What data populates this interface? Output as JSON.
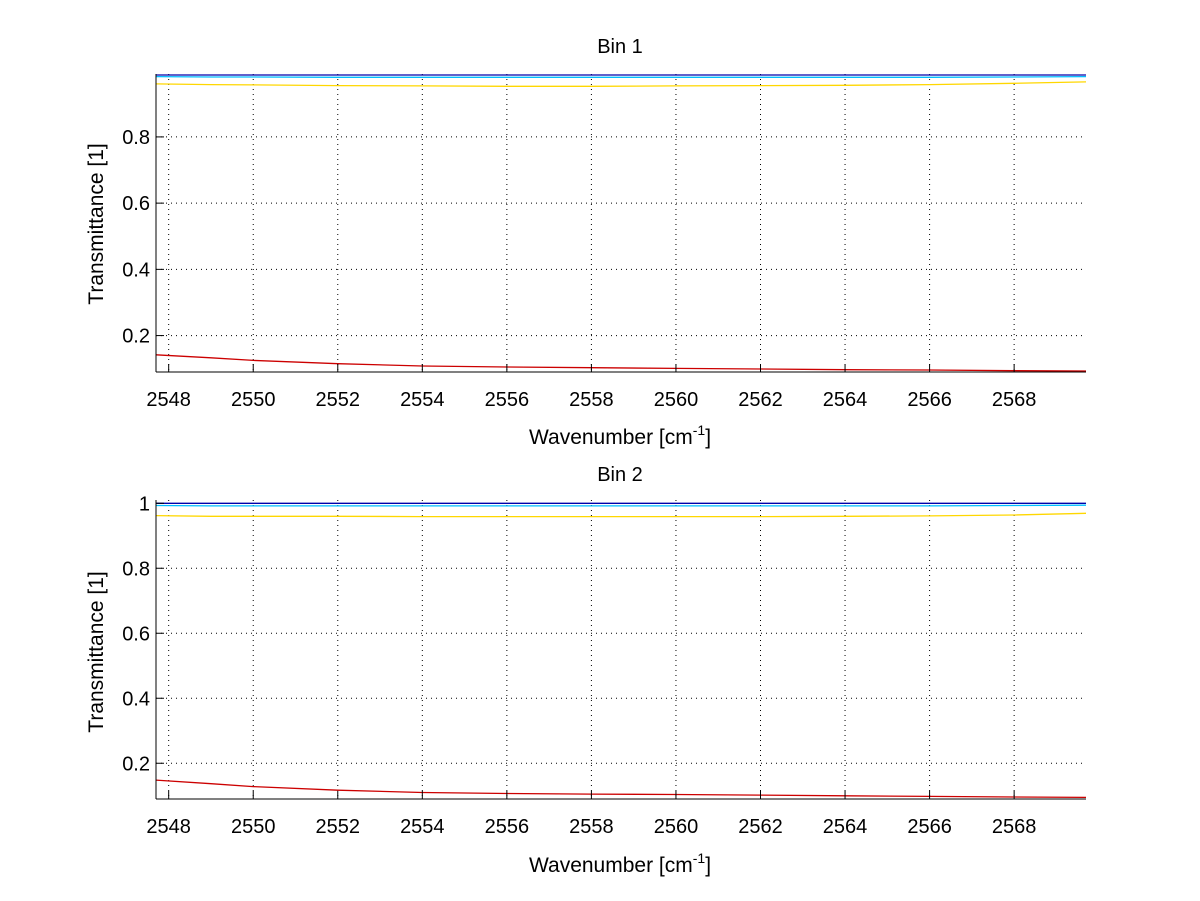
{
  "chart_data": [
    {
      "type": "line",
      "title": "Bin 1",
      "xlabel_text": "Wavenumber [cm",
      "xlabel_sup": "-1",
      "xlabel_close": "]",
      "ylabel": "Transmittance [1]",
      "xlim": [
        2547.7,
        2569.7
      ],
      "ylim": [
        0.09,
        0.99
      ],
      "x_ticks": [
        2548,
        2550,
        2552,
        2554,
        2556,
        2558,
        2560,
        2562,
        2564,
        2566,
        2568
      ],
      "y_ticks": [
        0.2,
        0.4,
        0.6,
        0.8
      ],
      "grid": true,
      "x": [
        2547.7,
        2549,
        2550,
        2552,
        2554,
        2556,
        2558,
        2560,
        2562,
        2564,
        2566,
        2568,
        2569.7
      ],
      "series": [
        {
          "color": "#0000aa",
          "values": [
            0.987,
            0.987,
            0.987,
            0.987,
            0.987,
            0.987,
            0.987,
            0.987,
            0.987,
            0.987,
            0.987,
            0.987,
            0.987
          ]
        },
        {
          "color": "#00bfff",
          "values": [
            0.982,
            0.981,
            0.981,
            0.98,
            0.98,
            0.98,
            0.98,
            0.98,
            0.98,
            0.98,
            0.98,
            0.981,
            0.982
          ]
        },
        {
          "color": "#ffd700",
          "values": [
            0.96,
            0.958,
            0.957,
            0.955,
            0.954,
            0.953,
            0.953,
            0.954,
            0.955,
            0.956,
            0.958,
            0.962,
            0.966
          ]
        },
        {
          "color": "#cc0000",
          "values": [
            0.142,
            0.133,
            0.125,
            0.115,
            0.108,
            0.105,
            0.103,
            0.101,
            0.099,
            0.097,
            0.096,
            0.094,
            0.093
          ]
        }
      ]
    },
    {
      "type": "line",
      "title": "Bin 2",
      "xlabel_text": "Wavenumber [cm",
      "xlabel_sup": "-1",
      "xlabel_close": "]",
      "ylabel": "Transmittance [1]",
      "xlim": [
        2547.7,
        2569.7
      ],
      "ylim": [
        0.09,
        1.01
      ],
      "x_ticks": [
        2548,
        2550,
        2552,
        2554,
        2556,
        2558,
        2560,
        2562,
        2564,
        2566,
        2568
      ],
      "y_ticks": [
        0.2,
        0.4,
        0.6,
        0.8,
        1
      ],
      "grid": true,
      "x": [
        2547.7,
        2549,
        2550,
        2552,
        2554,
        2556,
        2558,
        2560,
        2562,
        2564,
        2566,
        2568,
        2569.7
      ],
      "series": [
        {
          "color": "#0000aa",
          "values": [
            1.0,
            1.0,
            1.0,
            1.0,
            1.0,
            1.0,
            1.0,
            1.0,
            1.0,
            1.0,
            1.0,
            1.0,
            1.0
          ]
        },
        {
          "color": "#00bfff",
          "values": [
            0.993,
            0.992,
            0.992,
            0.992,
            0.992,
            0.992,
            0.992,
            0.992,
            0.992,
            0.992,
            0.992,
            0.993,
            0.994
          ]
        },
        {
          "color": "#ffd700",
          "values": [
            0.962,
            0.96,
            0.96,
            0.96,
            0.959,
            0.959,
            0.959,
            0.959,
            0.959,
            0.96,
            0.961,
            0.964,
            0.969
          ]
        },
        {
          "color": "#cc0000",
          "values": [
            0.148,
            0.137,
            0.128,
            0.117,
            0.11,
            0.107,
            0.105,
            0.104,
            0.102,
            0.1,
            0.098,
            0.096,
            0.095
          ]
        }
      ]
    }
  ]
}
